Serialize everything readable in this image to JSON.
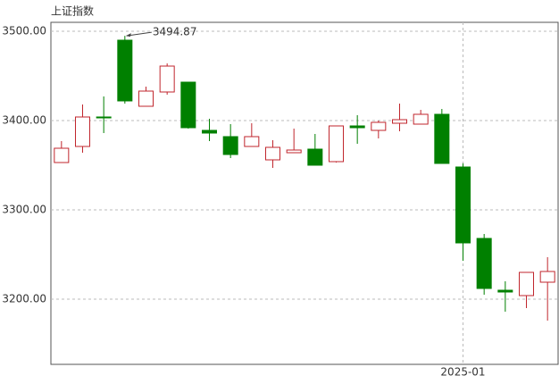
{
  "chart_data": {
    "type": "candlestick",
    "title": "上证指数",
    "categories": [
      null,
      null,
      null,
      null,
      null,
      null,
      null,
      null,
      null,
      null,
      null,
      null,
      null,
      null,
      null,
      null,
      null,
      null,
      null,
      "2025-01",
      null,
      null,
      null,
      null
    ],
    "open": [
      3353,
      3371,
      3404,
      3490,
      3416,
      3432,
      3443,
      3389,
      3382,
      3371,
      3356,
      3364,
      3368,
      3354,
      3394,
      3389,
      3397,
      3396,
      3407,
      3348,
      3268,
      3210,
      3204,
      3219
    ],
    "high": [
      3377,
      3418,
      3427,
      3494.87,
      3438,
      3464,
      3443,
      3402,
      3396,
      3397,
      3378,
      3391,
      3385,
      3394,
      3406,
      3400,
      3419,
      3412,
      3413,
      3352,
      3273,
      3220,
      3230,
      3247
    ],
    "low": [
      3353,
      3364,
      3386,
      3419,
      3416,
      3429,
      3391,
      3377,
      3358,
      3371,
      3347,
      3364,
      3350,
      3353,
      3374,
      3380,
      3388,
      3396,
      3352,
      3243,
      3205,
      3186,
      3190,
      3176
    ],
    "close": [
      3369,
      3404,
      3403,
      3422,
      3433,
      3461,
      3392,
      3386,
      3362,
      3382,
      3370,
      3367,
      3350,
      3394,
      3392,
      3398,
      3401,
      3407,
      3352,
      3263,
      3212,
      3208,
      3230,
      3231
    ],
    "up_color": "#c0262d",
    "down_color": "#008000",
    "ylim": [
      3127,
      3510
    ],
    "yticks": [
      {
        "value": 3200,
        "label": "3200.00"
      },
      {
        "value": 3300,
        "label": "3300.00"
      },
      {
        "value": 3400,
        "label": "3400.00"
      },
      {
        "value": 3500,
        "label": "3500.00"
      }
    ],
    "grid": true
  }
}
